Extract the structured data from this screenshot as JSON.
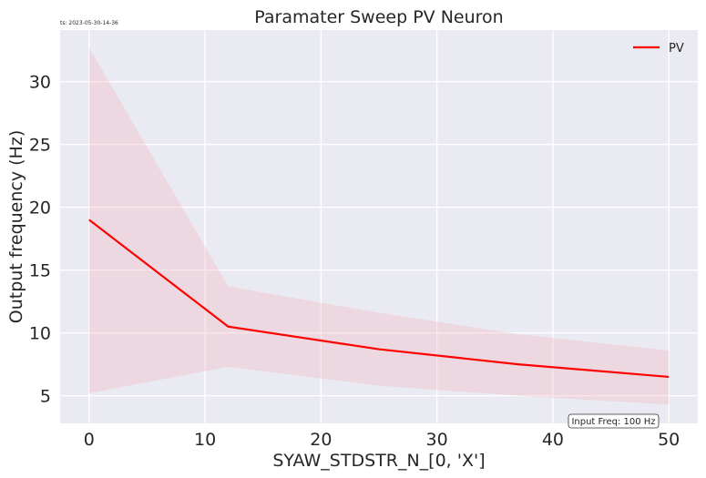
{
  "chart_data": {
    "type": "line",
    "title": "Paramater Sweep PV Neuron",
    "timestamp": "ts: 2023-05-30-14-36",
    "xlabel": "SYAW_STDSTR_N_[0, 'X']",
    "ylabel": "Output frequency (Hz)",
    "xlim": [
      -2.5,
      52.5
    ],
    "ylim": [
      2.8,
      34.1
    ],
    "xticks": [
      0,
      10,
      20,
      30,
      40,
      50
    ],
    "yticks": [
      5,
      10,
      15,
      20,
      25,
      30
    ],
    "grid": true,
    "legend_position": "top-right",
    "annotation": "Input Freq: 100 Hz",
    "series": [
      {
        "name": "PV",
        "color": "#ff0000",
        "band_color": "#f4b6c2",
        "x": [
          0,
          12,
          25,
          37,
          50
        ],
        "y": [
          19.0,
          10.5,
          8.7,
          7.5,
          6.5
        ],
        "lower": [
          5.2,
          7.3,
          5.8,
          5.0,
          4.3
        ],
        "upper": [
          32.7,
          13.7,
          11.6,
          9.9,
          8.6
        ]
      }
    ]
  }
}
